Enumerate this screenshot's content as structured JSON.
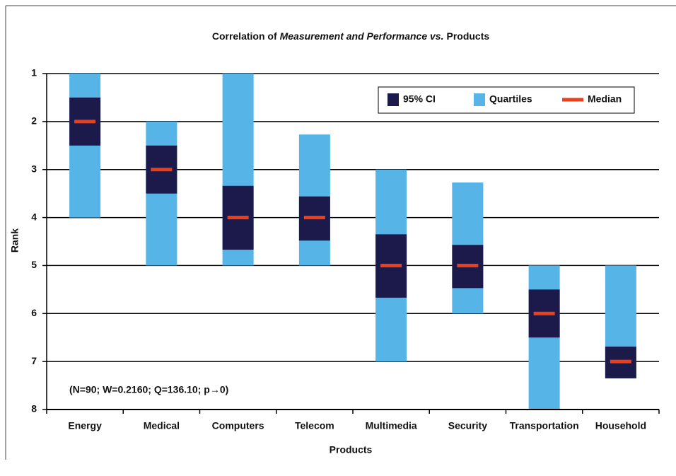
{
  "chart_data": {
    "type": "range",
    "title": [
      "Correlation of",
      "Measurement and Performance vs.",
      "Products"
    ],
    "x_label": "Products",
    "y_label": "Rank",
    "annotation": "(N=90; W=0.2160; Q=136.10; p→0)",
    "categories": [
      "Energy",
      "Medical",
      "Computers",
      "Telecom",
      "Multimedia",
      "Security",
      "Transportation",
      "Household"
    ],
    "series": [
      {
        "name": "Quartiles",
        "color": "#56b4e6",
        "low": [
          1,
          2,
          1,
          2.27,
          3,
          3.27,
          5,
          5
        ],
        "high": [
          4,
          5,
          5,
          5,
          7,
          6,
          8,
          7.35
        ]
      },
      {
        "name": "95% CI",
        "color": "#1c1a4a",
        "low": [
          1.5,
          2.5,
          3.34,
          3.56,
          4.35,
          4.57,
          5.5,
          6.69
        ],
        "high": [
          2.5,
          3.5,
          4.67,
          4.48,
          5.67,
          5.47,
          6.5,
          7.35
        ]
      },
      {
        "name": "Median",
        "color": "#e8401c",
        "values": [
          2,
          3,
          4,
          4,
          5,
          5,
          6,
          7
        ]
      }
    ],
    "legend_order": [
      1,
      0,
      2
    ],
    "ylim": [
      1,
      8
    ],
    "yticks": [
      1,
      2,
      3,
      4,
      5,
      6,
      7,
      8
    ],
    "y_inverted": true,
    "grid": true,
    "legend": "upper right"
  }
}
